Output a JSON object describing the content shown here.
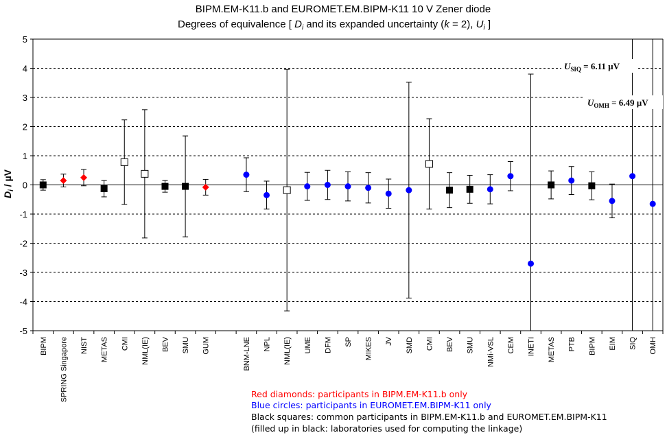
{
  "chart_data": {
    "type": "scatter",
    "title_line1": "BIPM.EM-K11.b and EUROMET.EM.BIPM-K11     10 V Zener diode",
    "title_line2_parts": [
      "Degrees of equivalence [ ",
      "D",
      "i",
      "  and its expanded uncertainty (",
      "k",
      " = 2), ",
      "U",
      "i",
      " ]"
    ],
    "ylabel_parts": [
      "D",
      "i",
      " / µV"
    ],
    "ylim": [
      -5,
      5
    ],
    "yticks": [
      "5",
      "4",
      "3",
      "2",
      "1",
      "0",
      "-1",
      "-2",
      "-3",
      "-4",
      "-5"
    ],
    "grid": "horizontal dashed",
    "categories": [
      "BIPM",
      "SPRING Singapore",
      "NIST",
      "METAS",
      "CMI",
      "NML(IE)",
      "BEV",
      "SMU",
      "GUM",
      "",
      "BNM-LNE",
      "NPL",
      "NML(IE)",
      "UME",
      "DFM",
      "SP",
      "MIKES",
      "JV",
      "SMD",
      "CMI",
      "BEV",
      "SMU",
      "NMi-VSL",
      "CEM",
      "INETI",
      "METAS",
      "PTB",
      "BIPM",
      "EIM",
      "SIQ",
      "OMH"
    ],
    "points": [
      {
        "cat": 0,
        "value": 0.0,
        "U": 0.18,
        "marker": "square-filled"
      },
      {
        "cat": 1,
        "value": 0.15,
        "U": 0.22,
        "marker": "diamond-red"
      },
      {
        "cat": 2,
        "value": 0.25,
        "U": 0.28,
        "marker": "diamond-red"
      },
      {
        "cat": 3,
        "value": -0.13,
        "U": 0.28,
        "marker": "square-filled"
      },
      {
        "cat": 4,
        "value": 0.78,
        "U": 1.45,
        "marker": "square-open"
      },
      {
        "cat": 5,
        "value": 0.38,
        "U": 2.2,
        "marker": "square-open"
      },
      {
        "cat": 6,
        "value": -0.05,
        "U": 0.2,
        "marker": "square-filled"
      },
      {
        "cat": 7,
        "value": -0.05,
        "U": 1.73,
        "marker": "square-filled"
      },
      {
        "cat": 8,
        "value": -0.08,
        "U": 0.27,
        "marker": "diamond-red"
      },
      {
        "cat": 10,
        "value": 0.35,
        "U": 0.58,
        "marker": "circle-blue"
      },
      {
        "cat": 11,
        "value": -0.35,
        "U": 0.48,
        "marker": "circle-blue"
      },
      {
        "cat": 12,
        "value": -0.18,
        "U": 4.14,
        "marker": "square-open"
      },
      {
        "cat": 13,
        "value": -0.05,
        "U": 0.48,
        "marker": "circle-blue"
      },
      {
        "cat": 14,
        "value": 0.0,
        "U": 0.5,
        "marker": "circle-blue"
      },
      {
        "cat": 15,
        "value": -0.05,
        "U": 0.5,
        "marker": "circle-blue"
      },
      {
        "cat": 16,
        "value": -0.1,
        "U": 0.52,
        "marker": "circle-blue"
      },
      {
        "cat": 17,
        "value": -0.3,
        "U": 0.5,
        "marker": "circle-blue"
      },
      {
        "cat": 18,
        "value": -0.18,
        "U": 3.7,
        "marker": "circle-blue"
      },
      {
        "cat": 19,
        "value": 0.72,
        "U": 1.55,
        "marker": "square-open"
      },
      {
        "cat": 20,
        "value": -0.18,
        "U": 0.6,
        "marker": "square-filled"
      },
      {
        "cat": 21,
        "value": -0.15,
        "U": 0.48,
        "marker": "square-filled"
      },
      {
        "cat": 22,
        "value": -0.15,
        "U": 0.5,
        "marker": "circle-blue"
      },
      {
        "cat": 23,
        "value": 0.3,
        "U": 0.5,
        "marker": "circle-blue"
      },
      {
        "cat": 24,
        "value": -2.7,
        "U": 6.5,
        "marker": "circle-blue"
      },
      {
        "cat": 25,
        "value": 0.0,
        "U": 0.48,
        "marker": "square-filled"
      },
      {
        "cat": 26,
        "value": 0.15,
        "U": 0.48,
        "marker": "circle-blue"
      },
      {
        "cat": 27,
        "value": -0.03,
        "U": 0.48,
        "marker": "square-filled"
      },
      {
        "cat": 28,
        "value": -0.55,
        "U": 0.58,
        "marker": "circle-blue"
      },
      {
        "cat": 29,
        "value": 0.3,
        "U": 6.11,
        "marker": "circle-blue"
      },
      {
        "cat": 30,
        "value": -0.65,
        "U": 6.49,
        "marker": "circle-blue"
      }
    ],
    "annotations": [
      {
        "parts": [
          "U",
          "SIQ",
          " = 6.11 µV"
        ]
      },
      {
        "parts": [
          "U",
          "OMH",
          " = 6.49 µV"
        ]
      }
    ]
  },
  "legend": {
    "red": "Red diamonds: participants in BIPM.EM-K11.b only",
    "blue": "Blue circles: participants in EUROMET.EM.BIPM-K11 only",
    "black": "Black squares: common participants in BIPM.EM-K11.b and EUROMET.EM.BIPM-K11",
    "note": "(filled up in black: laboratories used for computing the linkage)"
  },
  "colors": {
    "red": "#ff0000",
    "blue": "#0000ff",
    "black": "#000000",
    "grid": "#000000"
  }
}
